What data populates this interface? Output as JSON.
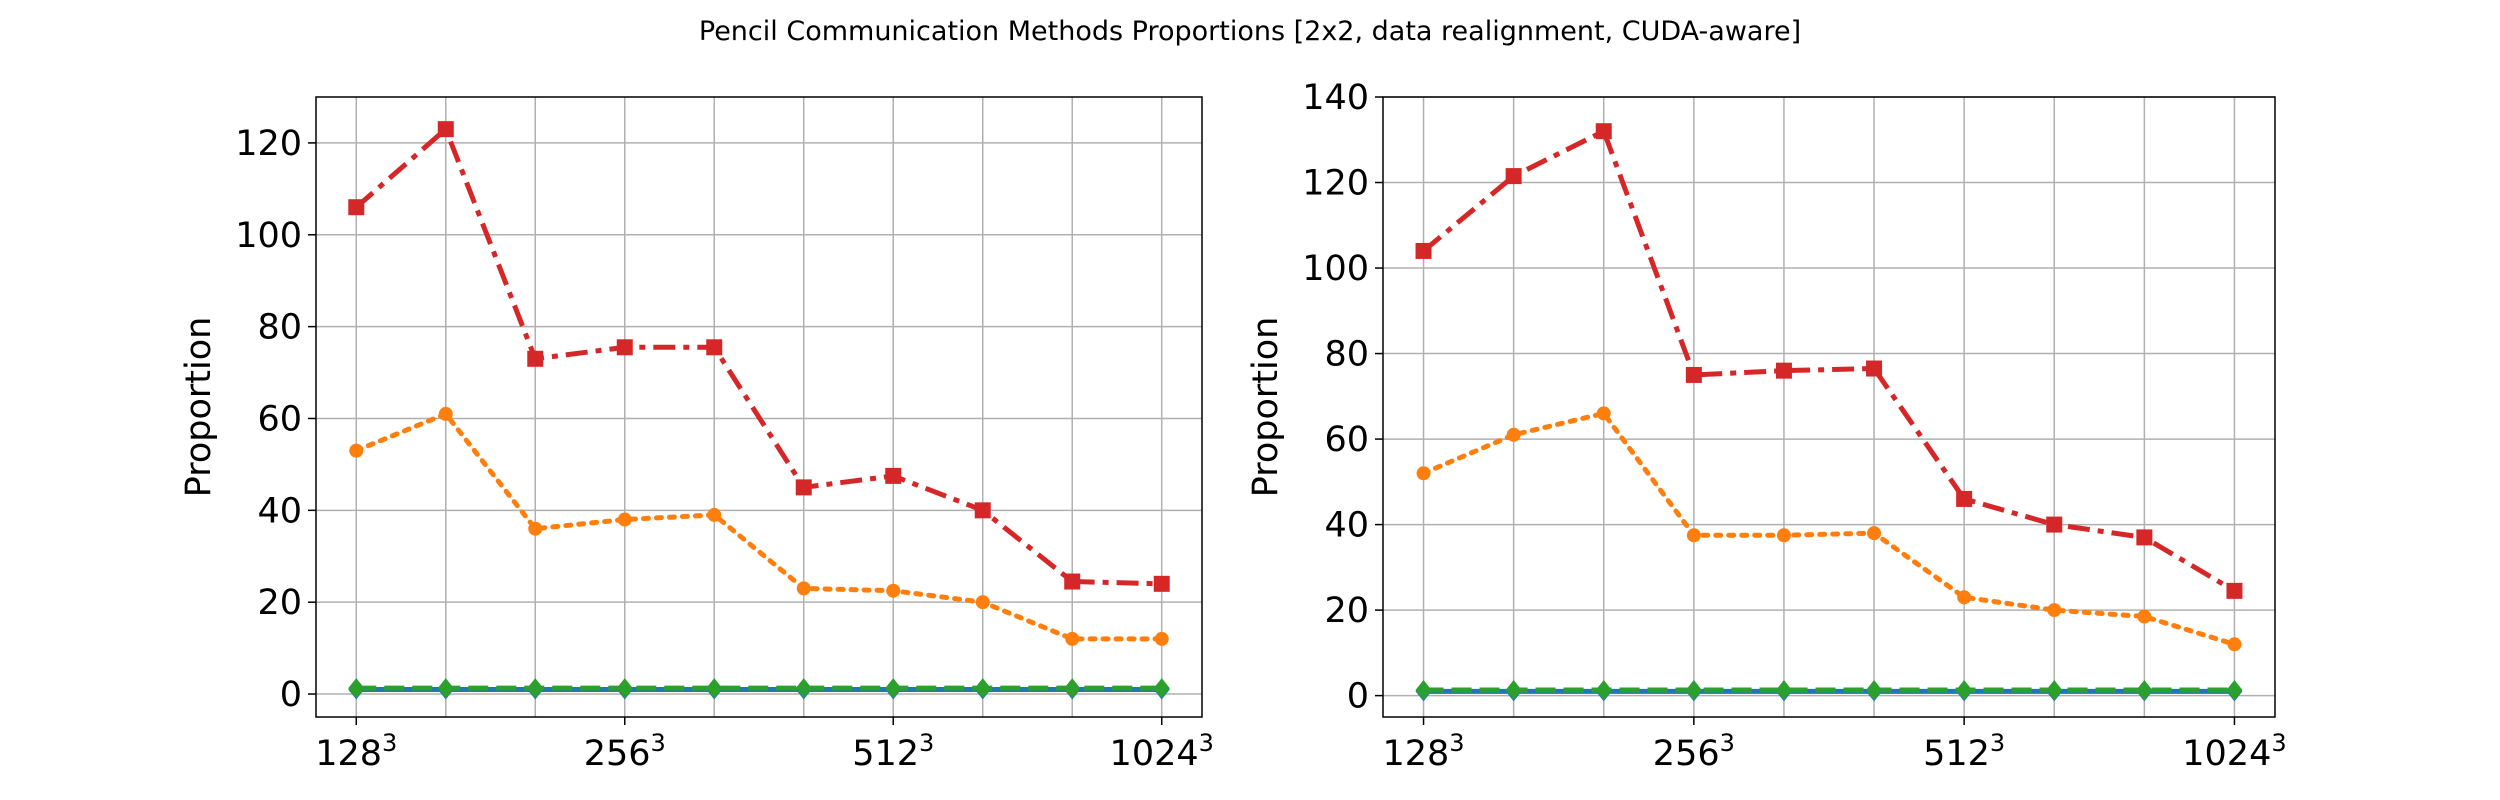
{
  "figure": {
    "title": "Pencil Communication Methods Proportions [2x2, data realignment, CUDA-aware]"
  },
  "chart_data": [
    {
      "type": "line",
      "ylabel": "Proportion",
      "xlabel": "",
      "ylim": [
        -5,
        130
      ],
      "yticks": [
        0,
        20,
        40,
        60,
        80,
        100,
        120
      ],
      "x": [
        0,
        1,
        2,
        3,
        4,
        5,
        6,
        7,
        8,
        9
      ],
      "xticks": [
        {
          "pos": 0,
          "base": "128",
          "exp": "3"
        },
        {
          "pos": 3,
          "base": "256",
          "exp": "3"
        },
        {
          "pos": 6,
          "base": "512",
          "exp": "3"
        },
        {
          "pos": 9,
          "base": "1024",
          "exp": "3"
        }
      ],
      "grid": true,
      "series": [
        {
          "color": "#1f77b4",
          "linestyle": "solid",
          "marker": "diamond",
          "values": [
            1,
            1,
            1,
            1,
            1,
            1,
            1,
            1,
            1,
            1
          ]
        },
        {
          "color": "#ff7f0e",
          "linestyle": "dotted",
          "marker": "circle",
          "values": [
            53,
            61,
            36,
            38,
            39,
            23,
            22.5,
            20,
            12,
            12
          ]
        },
        {
          "color": "#2ca02c",
          "linestyle": "dashed",
          "marker": "diamond",
          "values": [
            1.3,
            1.3,
            1.3,
            1.3,
            1.3,
            1.3,
            1.3,
            1.3,
            1.3,
            1.3
          ]
        },
        {
          "color": "#d62728",
          "linestyle": "dashdot",
          "marker": "square",
          "values": [
            106,
            123,
            73,
            75.5,
            75.5,
            45,
            47.5,
            40,
            24.5,
            24
          ]
        }
      ]
    },
    {
      "type": "line",
      "ylabel": "Proportion",
      "xlabel": "",
      "ylim": [
        -5,
        140
      ],
      "yticks": [
        0,
        20,
        40,
        60,
        80,
        100,
        120,
        140
      ],
      "x": [
        0,
        1,
        2,
        3,
        4,
        5,
        6,
        7,
        8,
        9
      ],
      "xticks": [
        {
          "pos": 0,
          "base": "128",
          "exp": "3"
        },
        {
          "pos": 3,
          "base": "256",
          "exp": "3"
        },
        {
          "pos": 6,
          "base": "512",
          "exp": "3"
        },
        {
          "pos": 9,
          "base": "1024",
          "exp": "3"
        }
      ],
      "grid": true,
      "series": [
        {
          "color": "#1f77b4",
          "linestyle": "solid",
          "marker": "diamond",
          "values": [
            1,
            1,
            1,
            1,
            1,
            1,
            1,
            1,
            1,
            1
          ]
        },
        {
          "color": "#ff7f0e",
          "linestyle": "dotted",
          "marker": "circle",
          "values": [
            52,
            61,
            66,
            37.5,
            37.5,
            38,
            23,
            20,
            18.5,
            12
          ]
        },
        {
          "color": "#2ca02c",
          "linestyle": "dashed",
          "marker": "diamond",
          "values": [
            1.3,
            1.3,
            1.3,
            1.3,
            1.3,
            1.3,
            1.3,
            1.3,
            1.3,
            1.3
          ]
        },
        {
          "color": "#d62728",
          "linestyle": "dashdot",
          "marker": "square",
          "values": [
            104,
            121.5,
            132,
            75,
            76,
            76.5,
            46,
            40,
            37,
            24.5
          ]
        }
      ]
    }
  ]
}
